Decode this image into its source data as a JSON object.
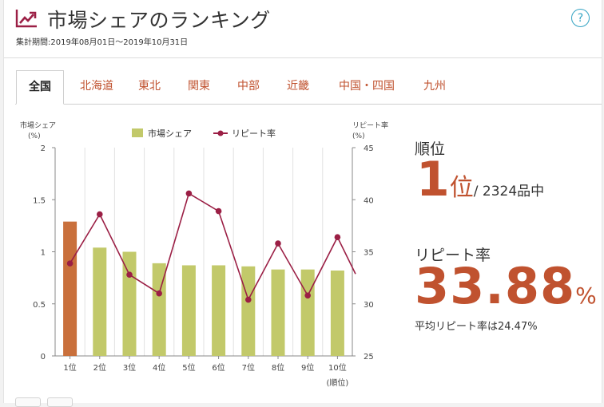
{
  "header": {
    "title": "市場シェアのランキング",
    "period": "集計期間:2019年08月01日〜2019年10月31日",
    "help_symbol": "?"
  },
  "tabs": [
    {
      "label": "全国",
      "active": true
    },
    {
      "label": "北海道",
      "active": false
    },
    {
      "label": "東北",
      "active": false
    },
    {
      "label": "関東",
      "active": false
    },
    {
      "label": "中部",
      "active": false
    },
    {
      "label": "近畿",
      "active": false
    },
    {
      "label": "中国・四国",
      "active": false
    },
    {
      "label": "九州",
      "active": false
    }
  ],
  "stats": {
    "rank_label": "順位",
    "rank_value": "1",
    "rank_unit": "位",
    "rank_total": "/ 2324品中",
    "repeat_label": "リピート率",
    "repeat_value": "33.88",
    "repeat_unit": "%",
    "average_text": "平均リピート率は24.47%"
  },
  "colors": {
    "accent": "#c0522f",
    "highlight_bar": "#c9703c",
    "bar": "#c2c96a",
    "line": "#9b1f45",
    "tab_text": "#c0522f",
    "help": "#33a3c3"
  },
  "chart_data": {
    "type": "bar",
    "legend": [
      "市場シェア",
      "リピート率"
    ],
    "legend_position": "top-center",
    "y_left": {
      "label_line1": "市場シェア",
      "label_line2": "(%)",
      "range": [
        0,
        2
      ],
      "ticks": [
        "0",
        "0.5",
        "1",
        "1.5",
        "2"
      ]
    },
    "y_right": {
      "label_line1": "リピート率",
      "label_line2": "(%)",
      "range": [
        25,
        45
      ],
      "ticks": [
        "25",
        "30",
        "35",
        "40",
        "45"
      ]
    },
    "x_unit": "(順位)",
    "categories": [
      "1位",
      "2位",
      "3位",
      "4位",
      "5位",
      "6位",
      "7位",
      "8位",
      "9位",
      "10位"
    ],
    "series": [
      {
        "name": "市場シェア",
        "type": "bar",
        "axis": "left",
        "values": [
          1.29,
          1.04,
          1.0,
          0.89,
          0.87,
          0.87,
          0.86,
          0.83,
          0.83,
          0.82
        ]
      },
      {
        "name": "リピート率",
        "type": "line",
        "axis": "right",
        "values": [
          33.88,
          38.6,
          32.8,
          31.0,
          40.6,
          38.9,
          30.4,
          35.8,
          30.8,
          36.4
        ]
      }
    ],
    "grid": "vertical"
  }
}
